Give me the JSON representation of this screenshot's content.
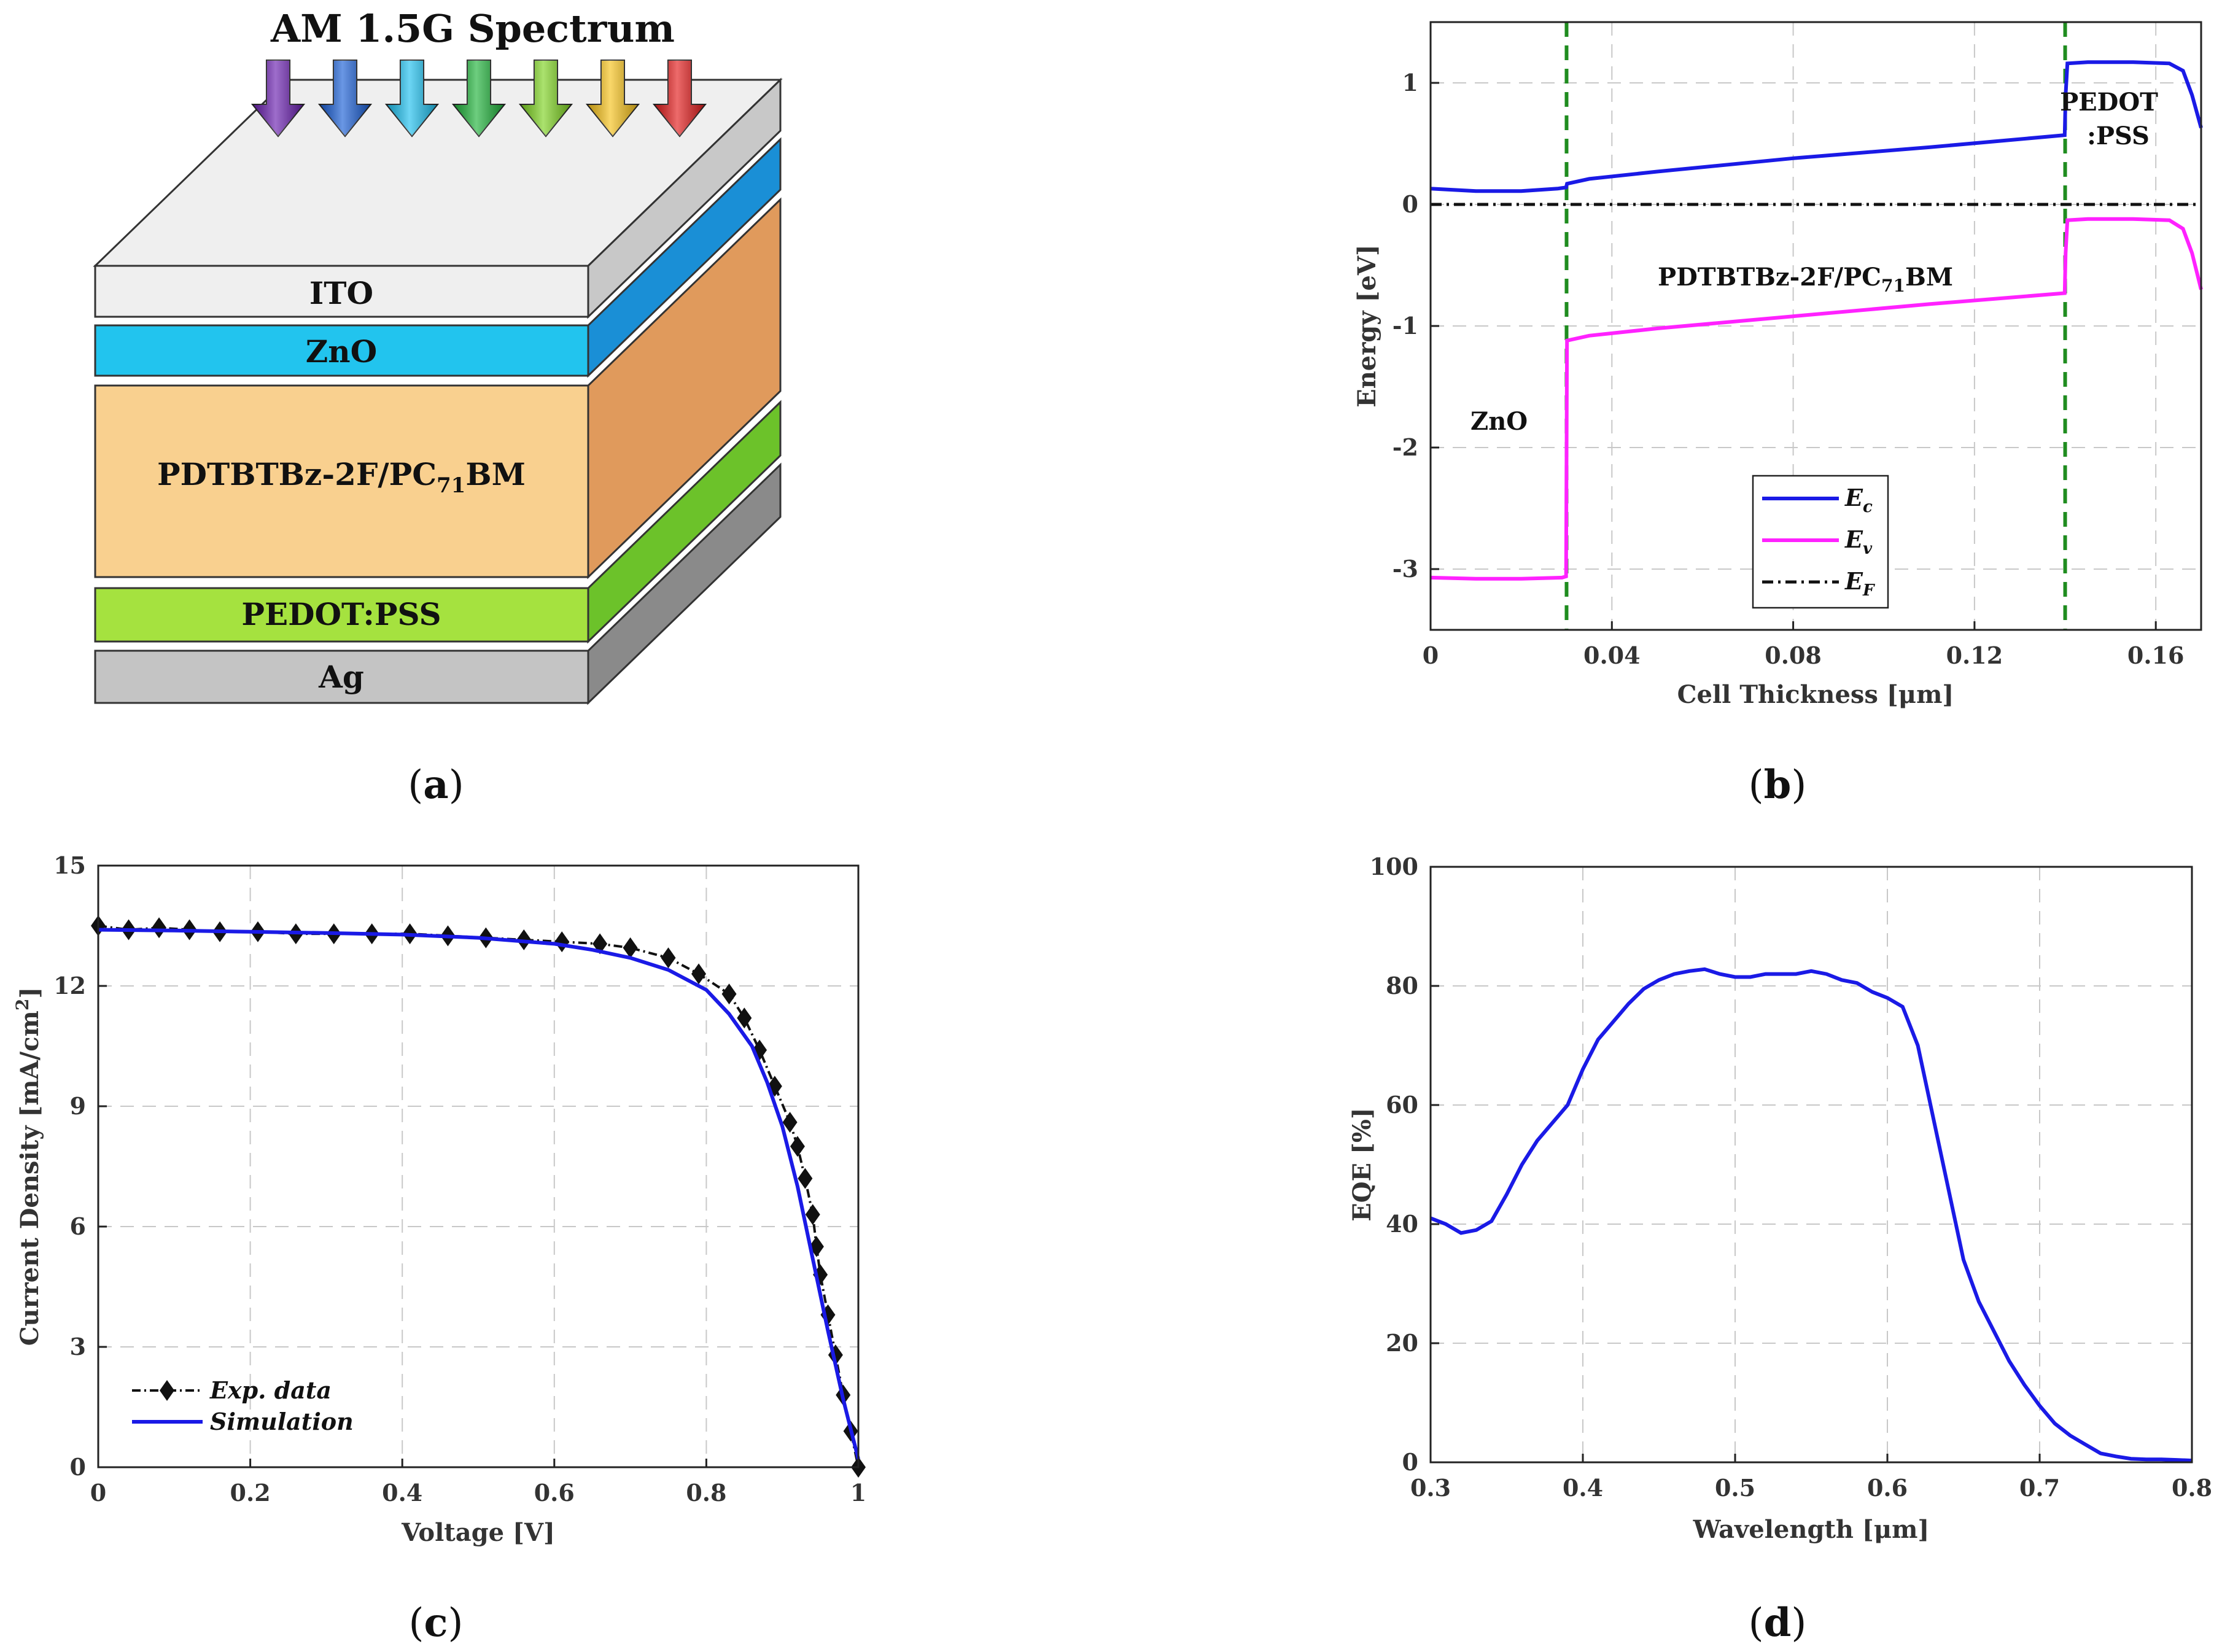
{
  "panel_labels": [
    "(a)",
    "(b)",
    "(c)",
    "(d)"
  ],
  "colors": {
    "ito": "#f0f0f0",
    "zno": "#22c4ee",
    "active": "#f9d08f",
    "pedot": "#a5e23f",
    "ag": "#c4c4c4",
    "ec": "#1a1ae6",
    "ev": "#ff22ff",
    "ef": "#111111",
    "interface": "#1f8c1f",
    "sim": "#1a1ae6",
    "exp": "#111111",
    "eqe": "#1a1ae6"
  },
  "chart_data": [
    {
      "id": "a",
      "type": "diagram",
      "title": "AM 1.5G Spectrum",
      "layers": [
        "ITO",
        "ZnO",
        "PDTBTBz-2F/PC",
        "PEDOT:PSS",
        "Ag"
      ],
      "active_layer_parts": [
        "PDTBTBz-2F/PC",
        "71",
        "BM"
      ],
      "arrow_colors": [
        "#6a1fb0",
        "#1a5fd6",
        "#1ec0ef",
        "#1fb33a",
        "#7ed321",
        "#f7c21a",
        "#e31b1b"
      ]
    },
    {
      "id": "b",
      "type": "line",
      "xlabel": "Cell Thickness [μm]",
      "ylabel": "Energy [eV]",
      "xlim": [
        0,
        0.17
      ],
      "ylim": [
        -3.5,
        1.5
      ],
      "xticks": [
        0,
        0.04,
        0.08,
        0.12,
        0.16
      ],
      "xtick_labels": [
        "0",
        "0.04",
        "0.08",
        "0.12",
        "0.16"
      ],
      "yticks": [
        -3,
        -2,
        -1,
        0,
        1
      ],
      "ytick_labels": [
        "-3",
        "-2",
        "-1",
        "0",
        "1"
      ],
      "interfaces": [
        0.03,
        0.14
      ],
      "annotations": [
        "PEDOT",
        ":PSS",
        "PDTBTBz-2F/PC",
        "71",
        "BM",
        "ZnO"
      ],
      "legend": [
        "E",
        "c",
        "E",
        "v",
        "E",
        "F"
      ],
      "series": [
        {
          "name": "Ec",
          "x": [
            0,
            0.01,
            0.02,
            0.028,
            0.0299,
            0.0301,
            0.035,
            0.05,
            0.08,
            0.11,
            0.1399,
            0.1401,
            0.1405,
            0.145,
            0.155,
            0.163,
            0.166,
            0.168,
            0.17
          ],
          "y": [
            0.13,
            0.11,
            0.11,
            0.13,
            0.14,
            0.17,
            0.21,
            0.27,
            0.38,
            0.47,
            0.57,
            0.9,
            1.16,
            1.17,
            1.17,
            1.16,
            1.1,
            0.9,
            0.63
          ]
        },
        {
          "name": "Ev",
          "x": [
            0,
            0.01,
            0.02,
            0.029,
            0.0299,
            0.0301,
            0.035,
            0.05,
            0.08,
            0.11,
            0.1399,
            0.1401,
            0.1405,
            0.145,
            0.155,
            0.163,
            0.166,
            0.168,
            0.17
          ],
          "y": [
            -3.07,
            -3.08,
            -3.08,
            -3.07,
            -3.06,
            -1.12,
            -1.08,
            -1.02,
            -0.92,
            -0.82,
            -0.73,
            -0.4,
            -0.13,
            -0.12,
            -0.12,
            -0.13,
            -0.2,
            -0.4,
            -0.7
          ]
        },
        {
          "name": "EF",
          "x": [
            0,
            0.17
          ],
          "y": [
            0,
            0
          ]
        }
      ]
    },
    {
      "id": "c",
      "type": "line",
      "xlabel": "Voltage [V]",
      "ylabel": "Current Density [mA/cm",
      "ylabel_sup": "2",
      "ylabel_end": "]",
      "xlim": [
        0,
        1
      ],
      "ylim": [
        0,
        15
      ],
      "xticks": [
        0,
        0.2,
        0.4,
        0.6,
        0.8,
        1
      ],
      "xtick_labels": [
        "0",
        "0.2",
        "0.4",
        "0.6",
        "0.8",
        "1"
      ],
      "yticks": [
        0,
        3,
        6,
        9,
        12,
        15
      ],
      "ytick_labels": [
        "0",
        "3",
        "6",
        "9",
        "12",
        "15"
      ],
      "legend": [
        "Exp. data",
        "Simulation"
      ],
      "series": [
        {
          "name": "Exp. data",
          "x": [
            0,
            0.04,
            0.08,
            0.12,
            0.16,
            0.21,
            0.26,
            0.31,
            0.36,
            0.41,
            0.46,
            0.51,
            0.56,
            0.61,
            0.66,
            0.7,
            0.75,
            0.79,
            0.83,
            0.85,
            0.87,
            0.89,
            0.91,
            0.92,
            0.93,
            0.94,
            0.945,
            0.95,
            0.96,
            0.97,
            0.98,
            0.99,
            1.0
          ],
          "y": [
            13.5,
            13.4,
            13.45,
            13.4,
            13.35,
            13.35,
            13.3,
            13.3,
            13.3,
            13.3,
            13.25,
            13.2,
            13.15,
            13.1,
            13.05,
            12.95,
            12.7,
            12.3,
            11.8,
            11.2,
            10.4,
            9.5,
            8.6,
            8.0,
            7.2,
            6.3,
            5.5,
            4.8,
            3.8,
            2.8,
            1.8,
            0.9,
            0.0
          ]
        },
        {
          "name": "Simulation",
          "x": [
            0,
            0.1,
            0.2,
            0.3,
            0.4,
            0.5,
            0.6,
            0.65,
            0.7,
            0.75,
            0.8,
            0.83,
            0.86,
            0.88,
            0.9,
            0.92,
            0.94,
            0.96,
            0.98,
            1.0
          ],
          "y": [
            13.4,
            13.38,
            13.35,
            13.32,
            13.28,
            13.2,
            13.05,
            12.9,
            12.7,
            12.4,
            11.9,
            11.3,
            10.5,
            9.6,
            8.5,
            7.0,
            5.2,
            3.4,
            1.7,
            0.2
          ]
        }
      ]
    },
    {
      "id": "d",
      "type": "line",
      "xlabel": "Wavelength [μm]",
      "ylabel": "EQE [%]",
      "xlim": [
        0.3,
        0.8
      ],
      "ylim": [
        0,
        100
      ],
      "xticks": [
        0.3,
        0.4,
        0.5,
        0.6,
        0.7,
        0.8
      ],
      "xtick_labels": [
        "0.3",
        "0.4",
        "0.5",
        "0.6",
        "0.7",
        "0.8"
      ],
      "yticks": [
        0,
        20,
        40,
        60,
        80,
        100
      ],
      "ytick_labels": [
        "0",
        "20",
        "40",
        "60",
        "80",
        "100"
      ],
      "series": [
        {
          "name": "EQE",
          "x": [
            0.3,
            0.31,
            0.32,
            0.33,
            0.34,
            0.35,
            0.36,
            0.37,
            0.38,
            0.39,
            0.4,
            0.41,
            0.42,
            0.43,
            0.44,
            0.45,
            0.46,
            0.47,
            0.48,
            0.49,
            0.5,
            0.51,
            0.52,
            0.53,
            0.54,
            0.55,
            0.56,
            0.57,
            0.58,
            0.59,
            0.6,
            0.61,
            0.62,
            0.63,
            0.64,
            0.65,
            0.66,
            0.67,
            0.68,
            0.69,
            0.7,
            0.71,
            0.72,
            0.73,
            0.74,
            0.75,
            0.76,
            0.77,
            0.78,
            0.79,
            0.8
          ],
          "y": [
            41,
            40,
            38.5,
            39,
            40.5,
            45,
            50,
            54,
            57,
            60,
            66,
            71,
            74,
            77,
            79.5,
            81,
            82,
            82.5,
            82.8,
            82,
            81.5,
            81.5,
            82,
            82,
            82,
            82.5,
            82,
            81,
            80.5,
            79,
            78,
            76.5,
            70,
            58,
            46,
            34,
            27,
            22,
            17,
            13,
            9.5,
            6.5,
            4.5,
            3,
            1.5,
            1,
            0.6,
            0.5,
            0.5,
            0.4,
            0.3
          ]
        }
      ]
    }
  ]
}
